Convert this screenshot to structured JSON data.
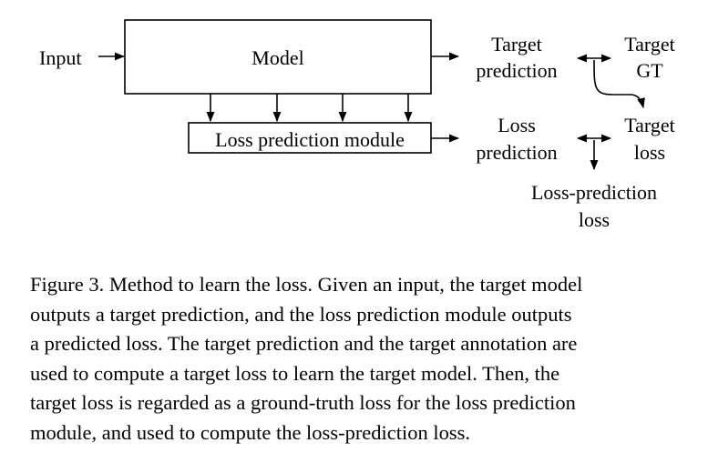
{
  "diagram": {
    "input_label": "Input",
    "model_label": "Model",
    "loss_module_label": "Loss prediction module",
    "target_prediction": [
      "Target",
      "prediction"
    ],
    "target_gt": [
      "Target",
      "GT"
    ],
    "loss_prediction": [
      "Loss",
      "prediction"
    ],
    "target_loss": [
      "Target",
      "loss"
    ],
    "loss_prediction_loss": [
      "Loss-prediction",
      "loss"
    ]
  },
  "caption": {
    "lines": [
      "Figure 3. Method to learn the loss. Given an input, the target model",
      "outputs a target prediction, and the loss prediction module outputs",
      "a predicted loss. The target prediction and the target annotation are",
      "used to compute a target loss to learn the target model. Then, the",
      "target loss is regarded as a ground-truth loss for the loss prediction",
      "module, and used to compute the loss-prediction loss."
    ]
  }
}
